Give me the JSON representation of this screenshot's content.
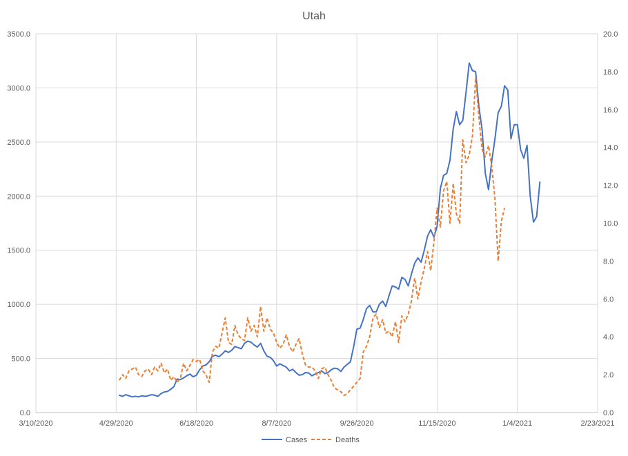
{
  "chart_data": {
    "type": "line",
    "title": "Utah",
    "x_axis": {
      "type": "date",
      "min": "2020-03-10",
      "max": "2021-02-23",
      "ticks": [
        "2020-03-10",
        "2020-04-29",
        "2020-06-18",
        "2020-08-07",
        "2020-09-26",
        "2020-11-15",
        "2021-01-04",
        "2021-02-23"
      ],
      "tick_labels": [
        "3/10/2020",
        "4/29/2020",
        "6/18/2020",
        "8/7/2020",
        "9/26/2020",
        "11/15/2020",
        "1/4/2021",
        "2/23/2021"
      ],
      "grid": true
    },
    "y_axis_left": {
      "min": 0,
      "max": 3500,
      "step": 500,
      "tick_labels": [
        "0.0",
        "500.0",
        "1000.0",
        "1500.0",
        "2000.0",
        "2500.0",
        "3000.0",
        "3500.0"
      ],
      "grid": true
    },
    "y_axis_right": {
      "min": 0,
      "max": 20,
      "step": 2,
      "tick_labels": [
        "0.0",
        "2.0",
        "4.0",
        "6.0",
        "8.0",
        "10.0",
        "12.0",
        "14.0",
        "16.0",
        "18.0",
        "20.0"
      ]
    },
    "legend": {
      "position": "bottom"
    },
    "series": [
      {
        "name": "Cases",
        "axis": "left",
        "color": "#4472c4",
        "style": "solid",
        "points": [
          [
            "2020-05-01",
            160
          ],
          [
            "2020-05-03",
            150
          ],
          [
            "2020-05-05",
            165
          ],
          [
            "2020-05-07",
            155
          ],
          [
            "2020-05-09",
            145
          ],
          [
            "2020-05-11",
            150
          ],
          [
            "2020-05-13",
            145
          ],
          [
            "2020-05-15",
            155
          ],
          [
            "2020-05-17",
            150
          ],
          [
            "2020-05-19",
            155
          ],
          [
            "2020-05-21",
            165
          ],
          [
            "2020-05-23",
            160
          ],
          [
            "2020-05-25",
            150
          ],
          [
            "2020-05-27",
            175
          ],
          [
            "2020-05-29",
            190
          ],
          [
            "2020-05-31",
            195
          ],
          [
            "2020-06-02",
            215
          ],
          [
            "2020-06-04",
            240
          ],
          [
            "2020-06-06",
            310
          ],
          [
            "2020-06-08",
            305
          ],
          [
            "2020-06-10",
            320
          ],
          [
            "2020-06-12",
            340
          ],
          [
            "2020-06-14",
            355
          ],
          [
            "2020-06-16",
            330
          ],
          [
            "2020-06-18",
            345
          ],
          [
            "2020-06-20",
            395
          ],
          [
            "2020-06-22",
            430
          ],
          [
            "2020-06-24",
            440
          ],
          [
            "2020-06-26",
            470
          ],
          [
            "2020-06-28",
            520
          ],
          [
            "2020-06-30",
            530
          ],
          [
            "2020-07-02",
            515
          ],
          [
            "2020-07-04",
            540
          ],
          [
            "2020-07-06",
            570
          ],
          [
            "2020-07-08",
            555
          ],
          [
            "2020-07-10",
            575
          ],
          [
            "2020-07-12",
            610
          ],
          [
            "2020-07-14",
            600
          ],
          [
            "2020-07-16",
            590
          ],
          [
            "2020-07-18",
            640
          ],
          [
            "2020-07-20",
            660
          ],
          [
            "2020-07-22",
            650
          ],
          [
            "2020-07-24",
            625
          ],
          [
            "2020-07-26",
            605
          ],
          [
            "2020-07-28",
            640
          ],
          [
            "2020-07-30",
            570
          ],
          [
            "2020-08-01",
            520
          ],
          [
            "2020-08-03",
            510
          ],
          [
            "2020-08-05",
            480
          ],
          [
            "2020-08-07",
            430
          ],
          [
            "2020-08-09",
            450
          ],
          [
            "2020-08-11",
            435
          ],
          [
            "2020-08-13",
            420
          ],
          [
            "2020-08-15",
            385
          ],
          [
            "2020-08-17",
            400
          ],
          [
            "2020-08-19",
            370
          ],
          [
            "2020-08-21",
            345
          ],
          [
            "2020-08-23",
            350
          ],
          [
            "2020-08-25",
            370
          ],
          [
            "2020-08-27",
            365
          ],
          [
            "2020-08-29",
            340
          ],
          [
            "2020-08-31",
            355
          ],
          [
            "2020-09-02",
            370
          ],
          [
            "2020-09-04",
            385
          ],
          [
            "2020-09-06",
            360
          ],
          [
            "2020-09-08",
            370
          ],
          [
            "2020-09-10",
            395
          ],
          [
            "2020-09-12",
            410
          ],
          [
            "2020-09-14",
            405
          ],
          [
            "2020-09-16",
            380
          ],
          [
            "2020-09-18",
            420
          ],
          [
            "2020-09-20",
            445
          ],
          [
            "2020-09-22",
            470
          ],
          [
            "2020-09-24",
            610
          ],
          [
            "2020-09-26",
            770
          ],
          [
            "2020-09-28",
            780
          ],
          [
            "2020-09-30",
            860
          ],
          [
            "2020-10-02",
            960
          ],
          [
            "2020-10-04",
            990
          ],
          [
            "2020-10-06",
            930
          ],
          [
            "2020-10-08",
            930
          ],
          [
            "2020-10-10",
            1000
          ],
          [
            "2020-10-12",
            1030
          ],
          [
            "2020-10-14",
            980
          ],
          [
            "2020-10-16",
            1080
          ],
          [
            "2020-10-18",
            1170
          ],
          [
            "2020-10-20",
            1160
          ],
          [
            "2020-10-22",
            1140
          ],
          [
            "2020-10-24",
            1250
          ],
          [
            "2020-10-26",
            1230
          ],
          [
            "2020-10-28",
            1170
          ],
          [
            "2020-10-30",
            1280
          ],
          [
            "2020-11-01",
            1380
          ],
          [
            "2020-11-03",
            1430
          ],
          [
            "2020-11-05",
            1390
          ],
          [
            "2020-11-07",
            1500
          ],
          [
            "2020-11-09",
            1630
          ],
          [
            "2020-11-11",
            1690
          ],
          [
            "2020-11-13",
            1620
          ],
          [
            "2020-11-15",
            1720
          ],
          [
            "2020-11-17",
            2070
          ],
          [
            "2020-11-19",
            2190
          ],
          [
            "2020-11-21",
            2210
          ],
          [
            "2020-11-23",
            2330
          ],
          [
            "2020-11-25",
            2620
          ],
          [
            "2020-11-27",
            2780
          ],
          [
            "2020-11-29",
            2660
          ],
          [
            "2020-12-01",
            2700
          ],
          [
            "2020-12-03",
            2960
          ],
          [
            "2020-12-05",
            3230
          ],
          [
            "2020-12-07",
            3160
          ],
          [
            "2020-12-09",
            3150
          ],
          [
            "2020-12-11",
            2830
          ],
          [
            "2020-12-13",
            2620
          ],
          [
            "2020-12-15",
            2210
          ],
          [
            "2020-12-17",
            2060
          ],
          [
            "2020-12-19",
            2320
          ],
          [
            "2020-12-21",
            2530
          ],
          [
            "2020-12-23",
            2770
          ],
          [
            "2020-12-25",
            2830
          ],
          [
            "2020-12-27",
            3020
          ],
          [
            "2020-12-29",
            2980
          ],
          [
            "2020-12-31",
            2530
          ],
          [
            "2021-01-02",
            2660
          ],
          [
            "2021-01-04",
            2660
          ],
          [
            "2021-01-06",
            2430
          ],
          [
            "2021-01-08",
            2350
          ],
          [
            "2021-01-10",
            2470
          ],
          [
            "2021-01-12",
            2000
          ],
          [
            "2021-01-14",
            1760
          ],
          [
            "2021-01-16",
            1810
          ],
          [
            "2021-01-18",
            2130
          ]
        ]
      },
      {
        "name": "Deaths",
        "axis": "right",
        "color": "#ed7d31",
        "style": "dashed",
        "points": [
          [
            "2020-05-01",
            1.7
          ],
          [
            "2020-05-03",
            2.0
          ],
          [
            "2020-05-05",
            1.8
          ],
          [
            "2020-05-07",
            2.2
          ],
          [
            "2020-05-09",
            2.3
          ],
          [
            "2020-05-11",
            2.4
          ],
          [
            "2020-05-13",
            2.0
          ],
          [
            "2020-05-15",
            1.9
          ],
          [
            "2020-05-17",
            2.2
          ],
          [
            "2020-05-19",
            2.3
          ],
          [
            "2020-05-21",
            2.0
          ],
          [
            "2020-05-23",
            2.4
          ],
          [
            "2020-05-25",
            2.2
          ],
          [
            "2020-05-27",
            2.6
          ],
          [
            "2020-05-29",
            2.1
          ],
          [
            "2020-05-31",
            2.3
          ],
          [
            "2020-06-02",
            1.7
          ],
          [
            "2020-06-04",
            1.9
          ],
          [
            "2020-06-06",
            1.6
          ],
          [
            "2020-06-08",
            1.8
          ],
          [
            "2020-06-10",
            2.6
          ],
          [
            "2020-06-12",
            2.2
          ],
          [
            "2020-06-14",
            2.5
          ],
          [
            "2020-06-16",
            2.8
          ],
          [
            "2020-06-18",
            2.7
          ],
          [
            "2020-06-20",
            2.8
          ],
          [
            "2020-06-22",
            2.2
          ],
          [
            "2020-06-24",
            2.0
          ],
          [
            "2020-06-26",
            1.6
          ],
          [
            "2020-06-28",
            3.2
          ],
          [
            "2020-06-30",
            3.5
          ],
          [
            "2020-07-02",
            3.4
          ],
          [
            "2020-07-04",
            4.2
          ],
          [
            "2020-07-06",
            5.0
          ],
          [
            "2020-07-08",
            3.7
          ],
          [
            "2020-07-10",
            3.6
          ],
          [
            "2020-07-12",
            4.6
          ],
          [
            "2020-07-14",
            4.1
          ],
          [
            "2020-07-16",
            3.9
          ],
          [
            "2020-07-18",
            3.8
          ],
          [
            "2020-07-20",
            5.0
          ],
          [
            "2020-07-22",
            4.3
          ],
          [
            "2020-07-24",
            4.6
          ],
          [
            "2020-07-26",
            4.0
          ],
          [
            "2020-07-28",
            5.6
          ],
          [
            "2020-07-30",
            4.3
          ],
          [
            "2020-08-01",
            5.0
          ],
          [
            "2020-08-03",
            4.4
          ],
          [
            "2020-08-05",
            4.2
          ],
          [
            "2020-08-07",
            3.7
          ],
          [
            "2020-08-09",
            3.4
          ],
          [
            "2020-08-11",
            3.6
          ],
          [
            "2020-08-13",
            4.1
          ],
          [
            "2020-08-15",
            3.5
          ],
          [
            "2020-08-17",
            3.2
          ],
          [
            "2020-08-19",
            3.6
          ],
          [
            "2020-08-21",
            3.9
          ],
          [
            "2020-08-23",
            3.1
          ],
          [
            "2020-08-25",
            2.5
          ],
          [
            "2020-08-27",
            2.4
          ],
          [
            "2020-08-29",
            2.4
          ],
          [
            "2020-08-31",
            2.2
          ],
          [
            "2020-09-02",
            1.8
          ],
          [
            "2020-09-04",
            2.3
          ],
          [
            "2020-09-06",
            2.4
          ],
          [
            "2020-09-08",
            2.0
          ],
          [
            "2020-09-10",
            1.7
          ],
          [
            "2020-09-12",
            1.3
          ],
          [
            "2020-09-14",
            1.2
          ],
          [
            "2020-09-16",
            1.1
          ],
          [
            "2020-09-18",
            0.9
          ],
          [
            "2020-09-20",
            1.0
          ],
          [
            "2020-09-22",
            1.2
          ],
          [
            "2020-09-24",
            1.4
          ],
          [
            "2020-09-26",
            1.6
          ],
          [
            "2020-09-28",
            1.8
          ],
          [
            "2020-09-30",
            3.2
          ],
          [
            "2020-10-02",
            3.5
          ],
          [
            "2020-10-04",
            4.0
          ],
          [
            "2020-10-06",
            5.0
          ],
          [
            "2020-10-08",
            5.2
          ],
          [
            "2020-10-10",
            4.5
          ],
          [
            "2020-10-12",
            4.9
          ],
          [
            "2020-10-14",
            4.2
          ],
          [
            "2020-10-16",
            4.3
          ],
          [
            "2020-10-18",
            4.0
          ],
          [
            "2020-10-20",
            4.8
          ],
          [
            "2020-10-22",
            3.7
          ],
          [
            "2020-10-24",
            5.1
          ],
          [
            "2020-10-26",
            4.8
          ],
          [
            "2020-10-28",
            5.2
          ],
          [
            "2020-10-30",
            5.9
          ],
          [
            "2020-11-01",
            7.1
          ],
          [
            "2020-11-03",
            6.0
          ],
          [
            "2020-11-05",
            6.9
          ],
          [
            "2020-11-07",
            7.6
          ],
          [
            "2020-11-09",
            8.5
          ],
          [
            "2020-11-11",
            7.5
          ],
          [
            "2020-11-13",
            9.0
          ],
          [
            "2020-11-15",
            10.8
          ],
          [
            "2020-11-17",
            9.8
          ],
          [
            "2020-11-19",
            11.7
          ],
          [
            "2020-11-21",
            12.2
          ],
          [
            "2020-11-23",
            10.0
          ],
          [
            "2020-11-25",
            12.1
          ],
          [
            "2020-11-27",
            10.5
          ],
          [
            "2020-11-29",
            10.0
          ],
          [
            "2020-12-01",
            14.4
          ],
          [
            "2020-12-03",
            13.2
          ],
          [
            "2020-12-05",
            13.6
          ],
          [
            "2020-12-07",
            14.6
          ],
          [
            "2020-12-09",
            17.7
          ],
          [
            "2020-12-11",
            15.6
          ],
          [
            "2020-12-13",
            13.9
          ],
          [
            "2020-12-15",
            13.5
          ],
          [
            "2020-12-17",
            14.1
          ],
          [
            "2020-12-19",
            13.0
          ],
          [
            "2020-12-21",
            11.3
          ],
          [
            "2020-12-23",
            8.0
          ],
          [
            "2020-12-25",
            10.1
          ],
          [
            "2020-12-27",
            10.8
          ]
        ]
      }
    ]
  }
}
